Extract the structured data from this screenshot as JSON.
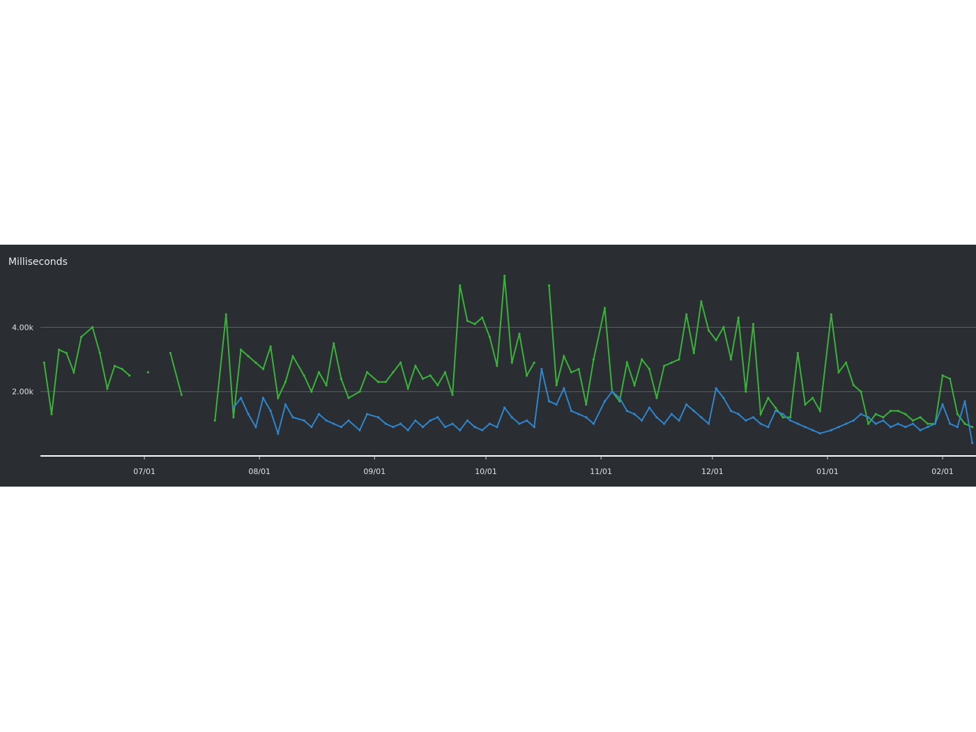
{
  "chart_data": {
    "type": "line",
    "title": "",
    "xlabel": "",
    "ylabel": "Milliseconds",
    "ylim": [
      0,
      5700
    ],
    "xlim": [
      "2023-06-03",
      "2024-02-10"
    ],
    "grid": true,
    "legend": "none",
    "y_ticks": [
      {
        "value": 2000,
        "label": "2.00k"
      },
      {
        "value": 4000,
        "label": "4.00k"
      }
    ],
    "x_ticks": [
      {
        "value": "2023-07-01",
        "label": "07/01"
      },
      {
        "value": "2023-08-01",
        "label": "08/01"
      },
      {
        "value": "2023-09-01",
        "label": "09/01"
      },
      {
        "value": "2023-10-01",
        "label": "10/01"
      },
      {
        "value": "2023-11-01",
        "label": "11/01"
      },
      {
        "value": "2023-12-01",
        "label": "12/01"
      },
      {
        "value": "2024-01-01",
        "label": "01/01"
      },
      {
        "value": "2024-02-01",
        "label": "02/01"
      }
    ],
    "series": [
      {
        "color": "#3bb33b",
        "x": [
          "2023-06-04",
          "2023-06-06",
          "2023-06-08",
          "2023-06-10",
          "2023-06-12",
          "2023-06-14",
          "2023-06-17",
          "2023-06-19",
          "2023-06-21",
          "2023-06-23",
          "2023-06-25",
          "2023-06-27",
          "2023-06-29",
          "2023-07-02",
          "2023-07-05",
          "2023-07-08",
          "2023-07-11",
          "2023-07-14",
          "2023-07-17",
          "2023-07-20",
          "2023-07-23",
          "2023-07-25",
          "2023-07-27",
          "2023-07-29",
          "2023-07-31",
          "2023-08-02",
          "2023-08-04",
          "2023-08-06",
          "2023-08-08",
          "2023-08-10",
          "2023-08-13",
          "2023-08-15",
          "2023-08-17",
          "2023-08-19",
          "2023-08-21",
          "2023-08-23",
          "2023-08-25",
          "2023-08-28",
          "2023-08-30",
          "2023-09-02",
          "2023-09-04",
          "2023-09-06",
          "2023-09-08",
          "2023-09-10",
          "2023-09-12",
          "2023-09-14",
          "2023-09-16",
          "2023-09-18",
          "2023-09-20",
          "2023-09-22",
          "2023-09-24",
          "2023-09-26",
          "2023-09-28",
          "2023-09-30",
          "2023-10-02",
          "2023-10-04",
          "2023-10-06",
          "2023-10-08",
          "2023-10-10",
          "2023-10-12",
          "2023-10-14",
          "2023-10-16",
          "2023-10-18",
          "2023-10-20",
          "2023-10-22",
          "2023-10-24",
          "2023-10-26",
          "2023-10-28",
          "2023-10-30",
          "2023-11-02",
          "2023-11-04",
          "2023-11-06",
          "2023-11-08",
          "2023-11-10",
          "2023-11-12",
          "2023-11-14",
          "2023-11-16",
          "2023-11-18",
          "2023-11-20",
          "2023-11-22",
          "2023-11-24",
          "2023-11-26",
          "2023-11-28",
          "2023-11-30",
          "2023-12-02",
          "2023-12-04",
          "2023-12-06",
          "2023-12-08",
          "2023-12-10",
          "2023-12-12",
          "2023-12-14",
          "2023-12-16",
          "2023-12-18",
          "2023-12-20",
          "2023-12-22",
          "2023-12-24",
          "2023-12-26",
          "2023-12-28",
          "2023-12-30",
          "2024-01-02",
          "2024-01-04",
          "2024-01-06",
          "2024-01-08",
          "2024-01-10",
          "2024-01-12",
          "2024-01-14",
          "2024-01-16",
          "2024-01-18",
          "2024-01-20",
          "2024-01-22",
          "2024-01-24",
          "2024-01-26",
          "2024-01-28",
          "2024-01-30",
          "2024-02-01",
          "2024-02-03",
          "2024-02-05",
          "2024-02-07",
          "2024-02-09"
        ],
        "y": [
          2900,
          1300,
          3300,
          3200,
          2600,
          3700,
          4000,
          3200,
          2100,
          2800,
          2700,
          2500,
          null,
          2600,
          null,
          3200,
          1900,
          null,
          null,
          1100,
          4400,
          1200,
          3300,
          3100,
          2900,
          2700,
          3400,
          1800,
          2300,
          3100,
          2500,
          2000,
          2600,
          2200,
          3500,
          2400,
          1800,
          2000,
          2600,
          2300,
          2300,
          2600,
          2900,
          2100,
          2800,
          2400,
          2500,
          2200,
          2600,
          1900,
          5300,
          4200,
          4100,
          4300,
          3700,
          2800,
          5600,
          2900,
          3800,
          2500,
          2900,
          null,
          5300,
          2200,
          3100,
          2600,
          2700,
          1600,
          3000,
          4600,
          2000,
          1700,
          2900,
          2200,
          3000,
          2700,
          1800,
          2800,
          2900,
          3000,
          4400,
          3200,
          4800,
          3900,
          3600,
          4000,
          3000,
          4300,
          2000,
          4100,
          1300,
          1800,
          1500,
          1200,
          1200,
          3200,
          1600,
          1800,
          1400,
          4400,
          2600,
          2900,
          2200,
          2000,
          1000,
          1300,
          1200,
          1400,
          1400,
          1300,
          1100,
          1200,
          1000,
          1000,
          2500,
          2400,
          1300,
          1000,
          900
        ]
      },
      {
        "color": "#2f86cc",
        "x": [
          "2023-07-25",
          "2023-07-27",
          "2023-07-29",
          "2023-07-31",
          "2023-08-02",
          "2023-08-04",
          "2023-08-06",
          "2023-08-08",
          "2023-08-10",
          "2023-08-13",
          "2023-08-15",
          "2023-08-17",
          "2023-08-19",
          "2023-08-21",
          "2023-08-23",
          "2023-08-25",
          "2023-08-28",
          "2023-08-30",
          "2023-09-02",
          "2023-09-04",
          "2023-09-06",
          "2023-09-08",
          "2023-09-10",
          "2023-09-12",
          "2023-09-14",
          "2023-09-16",
          "2023-09-18",
          "2023-09-20",
          "2023-09-22",
          "2023-09-24",
          "2023-09-26",
          "2023-09-28",
          "2023-09-30",
          "2023-10-02",
          "2023-10-04",
          "2023-10-06",
          "2023-10-08",
          "2023-10-10",
          "2023-10-12",
          "2023-10-14",
          "2023-10-16",
          "2023-10-18",
          "2023-10-20",
          "2023-10-22",
          "2023-10-24",
          "2023-10-26",
          "2023-10-28",
          "2023-10-30",
          "2023-11-02",
          "2023-11-04",
          "2023-11-06",
          "2023-11-08",
          "2023-11-10",
          "2023-11-12",
          "2023-11-14",
          "2023-11-16",
          "2023-11-18",
          "2023-11-20",
          "2023-11-22",
          "2023-11-24",
          "2023-11-26",
          "2023-11-28",
          "2023-11-30",
          "2023-12-02",
          "2023-12-04",
          "2023-12-06",
          "2023-12-08",
          "2023-12-10",
          "2023-12-12",
          "2023-12-14",
          "2023-12-16",
          "2023-12-18",
          "2023-12-20",
          "2023-12-22",
          "2023-12-24",
          "2023-12-26",
          "2023-12-28",
          "2023-12-30",
          "2024-01-02",
          "2024-01-04",
          "2024-01-06",
          "2024-01-08",
          "2024-01-10",
          "2024-01-12",
          "2024-01-14",
          "2024-01-16",
          "2024-01-18",
          "2024-01-20",
          "2024-01-22",
          "2024-01-24",
          "2024-01-26",
          "2024-01-28",
          "2024-01-30",
          "2024-02-01",
          "2024-02-03",
          "2024-02-05",
          "2024-02-07",
          "2024-02-09"
        ],
        "y": [
          1500,
          1800,
          1300,
          900,
          1800,
          1400,
          700,
          1600,
          1200,
          1100,
          900,
          1300,
          1100,
          1000,
          900,
          1100,
          800,
          1300,
          1200,
          1000,
          900,
          1000,
          800,
          1100,
          900,
          1100,
          1200,
          900,
          1000,
          800,
          1100,
          900,
          800,
          1000,
          900,
          1500,
          1200,
          1000,
          1100,
          900,
          2700,
          1700,
          1600,
          2100,
          1400,
          1300,
          1200,
          1000,
          1700,
          2000,
          1800,
          1400,
          1300,
          1100,
          1500,
          1200,
          1000,
          1300,
          1100,
          1600,
          1400,
          1200,
          1000,
          2100,
          1800,
          1400,
          1300,
          1100,
          1200,
          1000,
          900,
          1400,
          1300,
          1100,
          1000,
          900,
          800,
          700,
          800,
          900,
          1000,
          1100,
          1300,
          1200,
          1000,
          1100,
          900,
          1000,
          900,
          1000,
          800,
          900,
          1000,
          1600,
          1000,
          900,
          1700,
          400
        ]
      }
    ]
  }
}
